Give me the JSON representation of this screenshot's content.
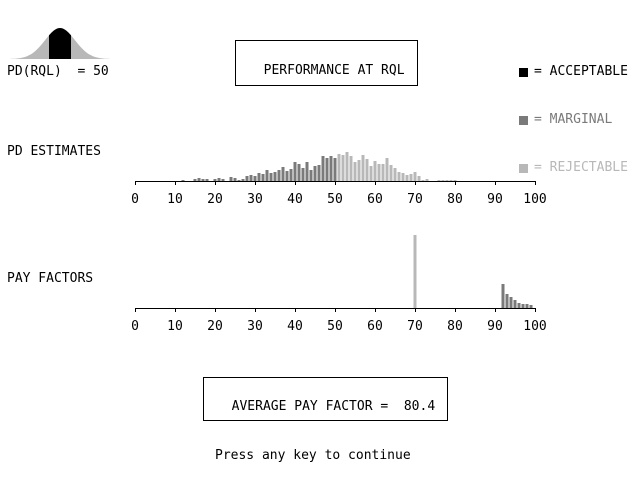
{
  "header": {
    "title": "PERFORMANCE AT RQL",
    "pd_rql_label": "PD(RQL)",
    "pd_rql_value": "= 50"
  },
  "legend": [
    {
      "label": "= ACCEPTABLE",
      "color": "#000000"
    },
    {
      "label": "= MARGINAL",
      "color": "#7a7a7a"
    },
    {
      "label": "= REJECTABLE",
      "color": "#b8b8b8"
    }
  ],
  "colors": {
    "acceptable": "#000000",
    "marginal": "#7a7a7a",
    "rejectable": "#b8b8b8"
  },
  "footer": {
    "average_label": "AVERAGE PAY FACTOR =",
    "average_value": "80.4",
    "prompt": "Press any key to continue"
  },
  "chart_data": [
    {
      "type": "bar",
      "ylabel": "PD ESTIMATES",
      "xlim": [
        0,
        100
      ],
      "xticks": [
        "0",
        "10",
        "20",
        "30",
        "40",
        "50",
        "60",
        "70",
        "80",
        "90",
        "100"
      ],
      "series": [
        {
          "category": "marginal",
          "x": [
            12,
            15,
            16,
            17,
            18,
            20,
            21,
            22,
            24,
            25,
            26,
            27,
            28,
            29,
            30,
            31,
            32,
            33,
            34,
            35,
            36,
            37,
            38,
            39,
            40,
            41,
            42,
            43,
            44,
            45,
            46,
            47,
            48,
            49,
            50
          ],
          "values": [
            1,
            2,
            3,
            2,
            2,
            2,
            3,
            2,
            4,
            3,
            1,
            2,
            5,
            6,
            5,
            8,
            7,
            11,
            8,
            9,
            11,
            14,
            10,
            12,
            19,
            17,
            13,
            19,
            11,
            15,
            16,
            25,
            23,
            25,
            23
          ]
        },
        {
          "category": "rejectable",
          "x": [
            51,
            52,
            53,
            54,
            55,
            56,
            57,
            58,
            59,
            60,
            61,
            62,
            63,
            64,
            65,
            66,
            67,
            68,
            69,
            70,
            71,
            72,
            73,
            76,
            77,
            78,
            79,
            80
          ],
          "values": [
            27,
            26,
            29,
            25,
            19,
            21,
            26,
            22,
            15,
            20,
            17,
            17,
            23,
            16,
            13,
            9,
            8,
            6,
            7,
            9,
            5,
            1,
            2,
            1,
            1,
            1,
            1,
            1
          ]
        }
      ]
    },
    {
      "type": "bar",
      "ylabel": "PAY FACTORS",
      "xlim": [
        0,
        100
      ],
      "xticks": [
        "0",
        "10",
        "20",
        "30",
        "40",
        "50",
        "60",
        "70",
        "80",
        "90",
        "100"
      ],
      "series": [
        {
          "category": "rejectable",
          "x": [
            70
          ],
          "values": [
            73
          ]
        },
        {
          "category": "marginal",
          "x": [
            92,
            93,
            94,
            95,
            96,
            97,
            98,
            99
          ],
          "values": [
            24,
            14,
            11,
            8,
            5,
            4,
            4,
            3
          ]
        }
      ]
    }
  ]
}
